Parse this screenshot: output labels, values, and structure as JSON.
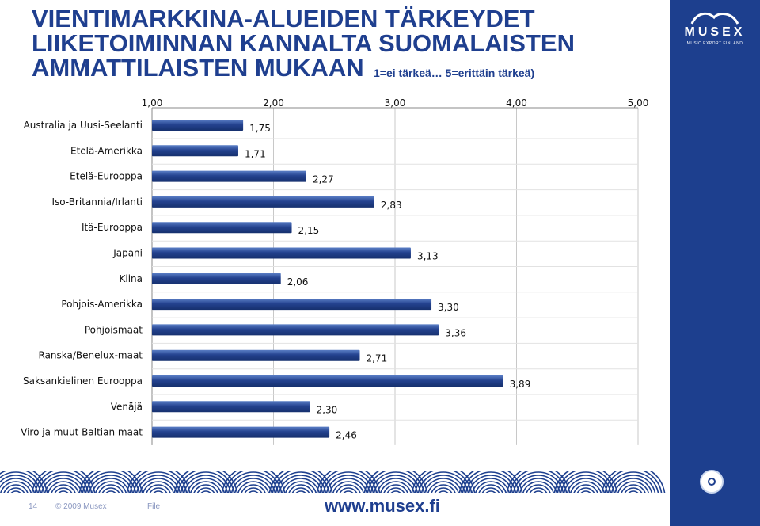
{
  "header": {
    "title_lines": [
      "VIENTIMARKKINA-ALUEIDEN TÄRKEYDET",
      "LIIKETOIMINNAN KANNALTA SUOMALAISTEN",
      "AMMATTILAISTEN MUKAAN"
    ],
    "scale_note": "1=ei tärkeä… 5=erittäin tärkeä)"
  },
  "brand": {
    "name": "MUSEX",
    "tagline": "MUSIC EXPORT FINLAND"
  },
  "footer": {
    "page": "14",
    "copyright": "© 2009 Musex",
    "file": "File",
    "url": "www.musex.fi"
  },
  "colors": {
    "accent": "#1d3f8e",
    "bar": "#24428f",
    "bar_light": "#5b7fc6"
  },
  "chart_data": {
    "type": "bar",
    "orientation": "horizontal",
    "categories": [
      "Australia ja Uusi-Seelanti",
      "Etelä-Amerikka",
      "Etelä-Eurooppa",
      "Iso-Britannia/Irlanti",
      "Itä-Eurooppa",
      "Japani",
      "Kiina",
      "Pohjois-Amerikka",
      "Pohjoismaat",
      "Ranska/Benelux-maat",
      "Saksankielinen Eurooppa",
      "Venäjä",
      "Viro ja muut Baltian maat"
    ],
    "values": [
      1.75,
      1.71,
      2.27,
      2.83,
      2.15,
      3.13,
      2.06,
      3.3,
      3.36,
      2.71,
      3.89,
      2.3,
      2.46
    ],
    "value_labels": [
      "1,75",
      "1,71",
      "2,27",
      "2,83",
      "2,15",
      "3,13",
      "2,06",
      "3,30",
      "3,36",
      "2,71",
      "3,89",
      "2,30",
      "2,46"
    ],
    "xlim": [
      1,
      5
    ],
    "ticks": [
      1,
      2,
      3,
      4,
      5
    ],
    "tick_labels": [
      "1,00",
      "2,00",
      "3,00",
      "4,00",
      "5,00"
    ],
    "axis_position": "top",
    "grid": true
  }
}
